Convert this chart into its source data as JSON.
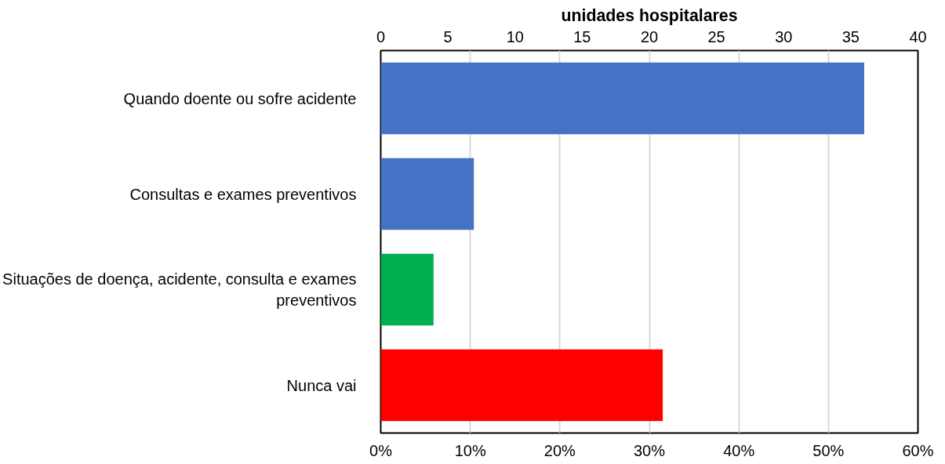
{
  "chart_data": {
    "type": "bar",
    "orientation": "horizontal",
    "title": "unidades hospitalares",
    "categories": [
      "Quando doente ou sofre acidente",
      "Consultas e exames preventivos",
      "Situações de doença, acidente, consulta e exames preventivos",
      "Nunca vai"
    ],
    "values": [
      54.0,
      10.4,
      5.9,
      31.5
    ],
    "colors": [
      "#4472c4",
      "#4472c4",
      "#00b050",
      "#ff0000"
    ],
    "xlim": [
      0,
      60
    ],
    "xticks": [
      {
        "value": 0,
        "label": "0%"
      },
      {
        "value": 10,
        "label": "10%"
      },
      {
        "value": 20,
        "label": "20%"
      },
      {
        "value": 30,
        "label": "30%"
      },
      {
        "value": 40,
        "label": "40%"
      },
      {
        "value": 50,
        "label": "50%"
      },
      {
        "value": 60,
        "label": "60%"
      }
    ],
    "x2lim": [
      0,
      40
    ],
    "x2ticks": [
      0,
      5,
      10,
      15,
      20,
      25,
      30,
      35,
      40
    ],
    "grid": "x"
  }
}
